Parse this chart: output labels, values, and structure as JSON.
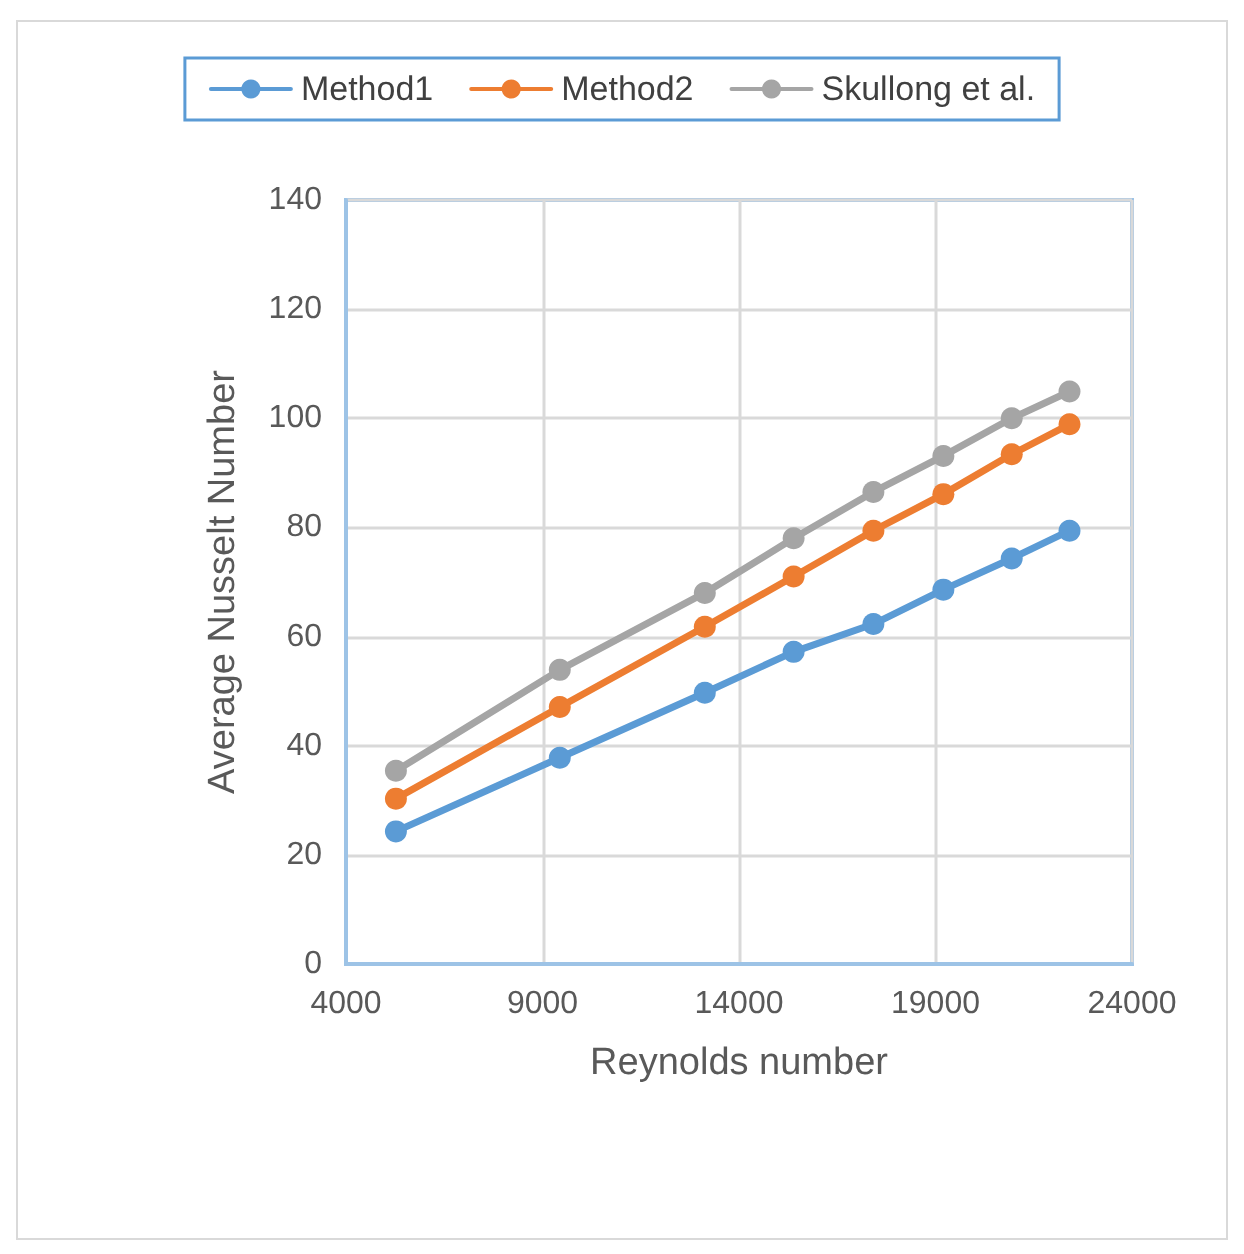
{
  "chart_data": {
    "type": "line",
    "xlabel": "Reynolds number",
    "ylabel": "Average Nusselt Number",
    "x": [
      5270,
      9440,
      13130,
      15390,
      17420,
      19200,
      20940,
      22410
    ],
    "series": [
      {
        "name": "Method1",
        "color": "#5b9bd5",
        "values": [
          24.3,
          37.8,
          49.7,
          57.2,
          62.3,
          68.6,
          74.3,
          79.4
        ]
      },
      {
        "name": "Method2",
        "color": "#ed7d31",
        "values": [
          30.3,
          47.1,
          61.8,
          71,
          79.4,
          86.1,
          93.4,
          98.9
        ]
      },
      {
        "name": "Skullong et al.",
        "color": "#a5a5a5",
        "values": [
          35.4,
          53.9,
          68,
          78,
          86.5,
          93.1,
          100,
          104.9
        ]
      }
    ],
    "xlim": [
      4000,
      24000
    ],
    "xticks": [
      4000,
      9000,
      14000,
      19000,
      24000
    ],
    "ylim": [
      0,
      140
    ],
    "yticks": [
      0,
      20,
      40,
      60,
      80,
      100,
      120,
      140
    ],
    "grid": true,
    "legend": "top",
    "marker": "circle",
    "line_style": "solid"
  }
}
